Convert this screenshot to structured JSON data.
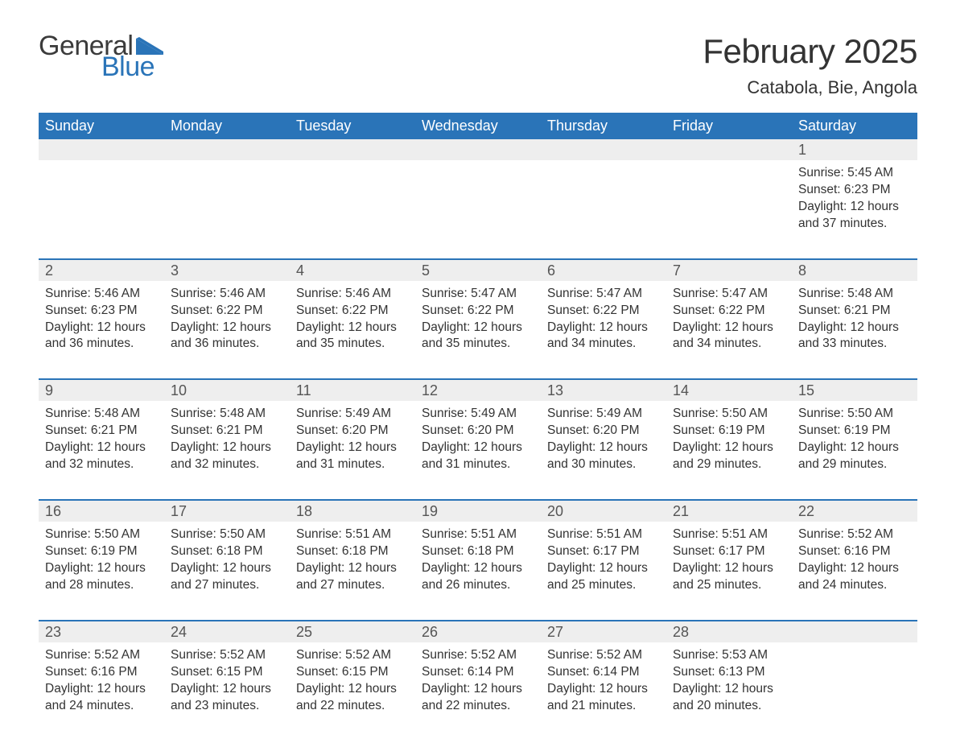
{
  "logo": {
    "text_general": "General",
    "text_blue": "Blue",
    "flag_color": "#2a74b8"
  },
  "header": {
    "month_title": "February 2025",
    "location": "Catabola, Bie, Angola"
  },
  "colors": {
    "header_bg": "#2a74b8",
    "daynum_bg": "#eeeeee",
    "text": "#333333",
    "accent": "#2a74b8",
    "background": "#ffffff"
  },
  "weekdays": [
    "Sunday",
    "Monday",
    "Tuesday",
    "Wednesday",
    "Thursday",
    "Friday",
    "Saturday"
  ],
  "weeks": [
    [
      {
        "empty": true
      },
      {
        "empty": true
      },
      {
        "empty": true
      },
      {
        "empty": true
      },
      {
        "empty": true
      },
      {
        "empty": true
      },
      {
        "num": "1",
        "sunrise": "Sunrise: 5:45 AM",
        "sunset": "Sunset: 6:23 PM",
        "daylight1": "Daylight: 12 hours",
        "daylight2": "and 37 minutes."
      }
    ],
    [
      {
        "num": "2",
        "sunrise": "Sunrise: 5:46 AM",
        "sunset": "Sunset: 6:23 PM",
        "daylight1": "Daylight: 12 hours",
        "daylight2": "and 36 minutes."
      },
      {
        "num": "3",
        "sunrise": "Sunrise: 5:46 AM",
        "sunset": "Sunset: 6:22 PM",
        "daylight1": "Daylight: 12 hours",
        "daylight2": "and 36 minutes."
      },
      {
        "num": "4",
        "sunrise": "Sunrise: 5:46 AM",
        "sunset": "Sunset: 6:22 PM",
        "daylight1": "Daylight: 12 hours",
        "daylight2": "and 35 minutes."
      },
      {
        "num": "5",
        "sunrise": "Sunrise: 5:47 AM",
        "sunset": "Sunset: 6:22 PM",
        "daylight1": "Daylight: 12 hours",
        "daylight2": "and 35 minutes."
      },
      {
        "num": "6",
        "sunrise": "Sunrise: 5:47 AM",
        "sunset": "Sunset: 6:22 PM",
        "daylight1": "Daylight: 12 hours",
        "daylight2": "and 34 minutes."
      },
      {
        "num": "7",
        "sunrise": "Sunrise: 5:47 AM",
        "sunset": "Sunset: 6:22 PM",
        "daylight1": "Daylight: 12 hours",
        "daylight2": "and 34 minutes."
      },
      {
        "num": "8",
        "sunrise": "Sunrise: 5:48 AM",
        "sunset": "Sunset: 6:21 PM",
        "daylight1": "Daylight: 12 hours",
        "daylight2": "and 33 minutes."
      }
    ],
    [
      {
        "num": "9",
        "sunrise": "Sunrise: 5:48 AM",
        "sunset": "Sunset: 6:21 PM",
        "daylight1": "Daylight: 12 hours",
        "daylight2": "and 32 minutes."
      },
      {
        "num": "10",
        "sunrise": "Sunrise: 5:48 AM",
        "sunset": "Sunset: 6:21 PM",
        "daylight1": "Daylight: 12 hours",
        "daylight2": "and 32 minutes."
      },
      {
        "num": "11",
        "sunrise": "Sunrise: 5:49 AM",
        "sunset": "Sunset: 6:20 PM",
        "daylight1": "Daylight: 12 hours",
        "daylight2": "and 31 minutes."
      },
      {
        "num": "12",
        "sunrise": "Sunrise: 5:49 AM",
        "sunset": "Sunset: 6:20 PM",
        "daylight1": "Daylight: 12 hours",
        "daylight2": "and 31 minutes."
      },
      {
        "num": "13",
        "sunrise": "Sunrise: 5:49 AM",
        "sunset": "Sunset: 6:20 PM",
        "daylight1": "Daylight: 12 hours",
        "daylight2": "and 30 minutes."
      },
      {
        "num": "14",
        "sunrise": "Sunrise: 5:50 AM",
        "sunset": "Sunset: 6:19 PM",
        "daylight1": "Daylight: 12 hours",
        "daylight2": "and 29 minutes."
      },
      {
        "num": "15",
        "sunrise": "Sunrise: 5:50 AM",
        "sunset": "Sunset: 6:19 PM",
        "daylight1": "Daylight: 12 hours",
        "daylight2": "and 29 minutes."
      }
    ],
    [
      {
        "num": "16",
        "sunrise": "Sunrise: 5:50 AM",
        "sunset": "Sunset: 6:19 PM",
        "daylight1": "Daylight: 12 hours",
        "daylight2": "and 28 minutes."
      },
      {
        "num": "17",
        "sunrise": "Sunrise: 5:50 AM",
        "sunset": "Sunset: 6:18 PM",
        "daylight1": "Daylight: 12 hours",
        "daylight2": "and 27 minutes."
      },
      {
        "num": "18",
        "sunrise": "Sunrise: 5:51 AM",
        "sunset": "Sunset: 6:18 PM",
        "daylight1": "Daylight: 12 hours",
        "daylight2": "and 27 minutes."
      },
      {
        "num": "19",
        "sunrise": "Sunrise: 5:51 AM",
        "sunset": "Sunset: 6:18 PM",
        "daylight1": "Daylight: 12 hours",
        "daylight2": "and 26 minutes."
      },
      {
        "num": "20",
        "sunrise": "Sunrise: 5:51 AM",
        "sunset": "Sunset: 6:17 PM",
        "daylight1": "Daylight: 12 hours",
        "daylight2": "and 25 minutes."
      },
      {
        "num": "21",
        "sunrise": "Sunrise: 5:51 AM",
        "sunset": "Sunset: 6:17 PM",
        "daylight1": "Daylight: 12 hours",
        "daylight2": "and 25 minutes."
      },
      {
        "num": "22",
        "sunrise": "Sunrise: 5:52 AM",
        "sunset": "Sunset: 6:16 PM",
        "daylight1": "Daylight: 12 hours",
        "daylight2": "and 24 minutes."
      }
    ],
    [
      {
        "num": "23",
        "sunrise": "Sunrise: 5:52 AM",
        "sunset": "Sunset: 6:16 PM",
        "daylight1": "Daylight: 12 hours",
        "daylight2": "and 24 minutes."
      },
      {
        "num": "24",
        "sunrise": "Sunrise: 5:52 AM",
        "sunset": "Sunset: 6:15 PM",
        "daylight1": "Daylight: 12 hours",
        "daylight2": "and 23 minutes."
      },
      {
        "num": "25",
        "sunrise": "Sunrise: 5:52 AM",
        "sunset": "Sunset: 6:15 PM",
        "daylight1": "Daylight: 12 hours",
        "daylight2": "and 22 minutes."
      },
      {
        "num": "26",
        "sunrise": "Sunrise: 5:52 AM",
        "sunset": "Sunset: 6:14 PM",
        "daylight1": "Daylight: 12 hours",
        "daylight2": "and 22 minutes."
      },
      {
        "num": "27",
        "sunrise": "Sunrise: 5:52 AM",
        "sunset": "Sunset: 6:14 PM",
        "daylight1": "Daylight: 12 hours",
        "daylight2": "and 21 minutes."
      },
      {
        "num": "28",
        "sunrise": "Sunrise: 5:53 AM",
        "sunset": "Sunset: 6:13 PM",
        "daylight1": "Daylight: 12 hours",
        "daylight2": "and 20 minutes."
      },
      {
        "empty": true
      }
    ]
  ]
}
